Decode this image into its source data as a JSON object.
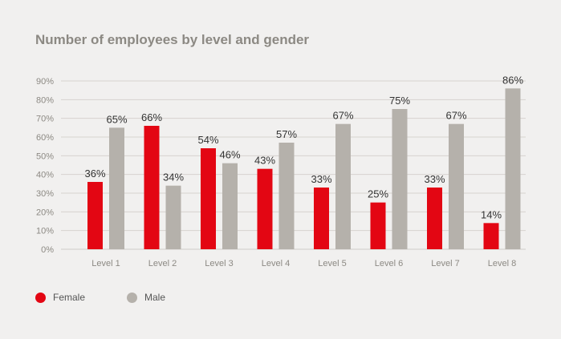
{
  "chart_data": {
    "type": "bar",
    "title": "Number of employees by level and gender",
    "categories": [
      "Level 1",
      "Level 2",
      "Level 3",
      "Level 4",
      "Level 5",
      "Level 6",
      "Level 7",
      "Level 8"
    ],
    "series": [
      {
        "name": "Female",
        "color": "#e30613",
        "values": [
          36,
          66,
          54,
          43,
          33,
          25,
          33,
          14
        ]
      },
      {
        "name": "Male",
        "color": "#b5b1ab",
        "values": [
          65,
          34,
          46,
          57,
          67,
          75,
          67,
          86
        ]
      }
    ],
    "yticks": [
      "0%",
      "10%",
      "20%",
      "30%",
      "40%",
      "50%",
      "60%",
      "70%",
      "80%",
      "90%"
    ],
    "ylim": [
      0,
      90
    ],
    "xlabel": "",
    "ylabel": "",
    "grid": true,
    "legend_position": "bottom-left"
  }
}
